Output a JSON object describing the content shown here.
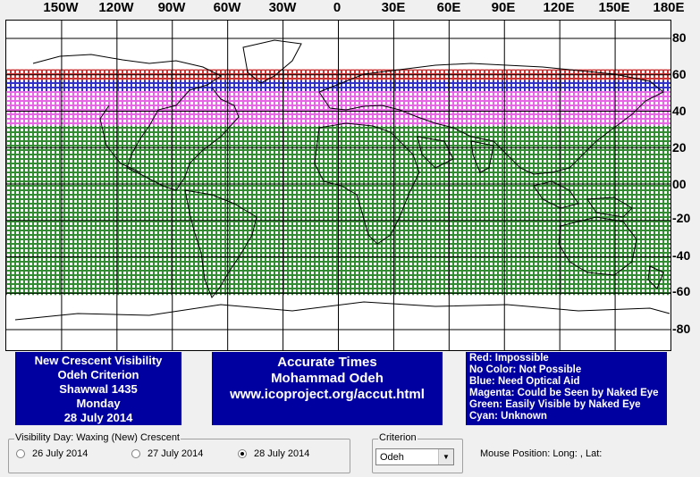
{
  "longitude_labels": [
    "150W",
    "120W",
    "90W",
    "60W",
    "30W",
    "0",
    "30E",
    "60E",
    "90E",
    "120E",
    "150E",
    "180E"
  ],
  "latitude_labels": [
    "80",
    "60",
    "40",
    "20",
    "00",
    "-20",
    "-40",
    "-60",
    "-80"
  ],
  "map": {
    "bands": [
      {
        "name": "red",
        "color": "#c00000",
        "lat_top": 63,
        "lat_bottom": 57
      },
      {
        "name": "blue",
        "color": "#0000c0",
        "lat_top": 57,
        "lat_bottom": 51
      },
      {
        "name": "magenta",
        "color": "#e040e0",
        "lat_top": 51,
        "lat_bottom": 32
      },
      {
        "name": "green",
        "color": "#007000",
        "lat_top": 32,
        "lat_bottom": -61
      }
    ]
  },
  "info_box": {
    "line1": "New Crescent Visibility",
    "line2": "Odeh Criterion",
    "line3": "Shawwal 1435",
    "line4": "Monday",
    "line5": "28 July 2014"
  },
  "credit_box": {
    "line1": "Accurate Times",
    "line2": "Mohammad Odeh",
    "line3": "www.icoproject.org/accut.html"
  },
  "legend": {
    "red": "Red: Impossible",
    "none": "No Color: Not Possible",
    "blue": "Blue: Need Optical Aid",
    "magenta": "Magenta: Could be Seen by Naked Eye",
    "green": "Green: Easily Visible by Naked Eye",
    "cyan": "Cyan: Unknown"
  },
  "visibility_day": {
    "title": "Visibility Day: Waxing (New) Crescent",
    "options": [
      "26 July 2014",
      "27 July 2014",
      "28 July 2014"
    ],
    "selected": "28 July 2014"
  },
  "criterion": {
    "title": "Criterion",
    "value": "Odeh"
  },
  "mouse_position": "Mouse Position: Long: , Lat:"
}
